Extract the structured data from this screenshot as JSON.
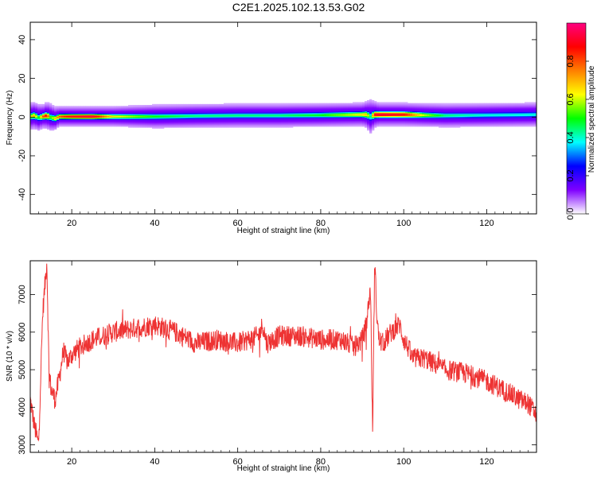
{
  "figure": {
    "title": "C2E1.2025.102.13.53.G02"
  },
  "chart_data": [
    {
      "type": "heatmap",
      "xlabel": "Height of straight line (km)",
      "ylabel": "Frequency (Hz)",
      "xlim": [
        10,
        132
      ],
      "ylim": [
        -50,
        49
      ],
      "xticks": [
        20,
        40,
        60,
        80,
        100,
        120
      ],
      "yticks": [
        -40,
        -20,
        0,
        20,
        40
      ],
      "colorbar": {
        "label": "Normalized spectral amplitude",
        "range": [
          0,
          1
        ],
        "ticks": [
          0.0,
          0.2,
          0.4,
          0.6,
          0.8
        ],
        "colormap": [
          "#ffffff",
          "#7f00ff",
          "#0000ff",
          "#00ffff",
          "#00ff00",
          "#ffff00",
          "#ff7f00",
          "#ff0000",
          "#ff0080"
        ]
      },
      "ridge": {
        "x": [
          10,
          11,
          12,
          13,
          14,
          15,
          16,
          17,
          18,
          20,
          25,
          30,
          40,
          50,
          60,
          70,
          80,
          90,
          91,
          92,
          93,
          94,
          95,
          100,
          105,
          110,
          120,
          132
        ],
        "frequency": [
          0.5,
          1.0,
          0.0,
          0.5,
          1.0,
          0.0,
          -0.5,
          0.5,
          0.5,
          0.5,
          0.5,
          0.5,
          0.5,
          0.8,
          1.0,
          1.0,
          1.2,
          1.5,
          1.5,
          0.5,
          1.5,
          1.5,
          1.5,
          1.5,
          1.2,
          1.0,
          1.2,
          1.5
        ],
        "amplitude": [
          0.6,
          0.7,
          0.5,
          0.8,
          0.9,
          0.5,
          0.7,
          0.8,
          0.85,
          0.9,
          0.95,
          0.65,
          0.5,
          0.45,
          0.45,
          0.45,
          0.5,
          0.65,
          0.7,
          0.45,
          0.9,
          0.95,
          0.95,
          0.9,
          0.6,
          0.45,
          0.4,
          0.4
        ],
        "width_hz": [
          4,
          4,
          4,
          3.5,
          4,
          4,
          3.5,
          3,
          3,
          3,
          3,
          3,
          3.5,
          3.5,
          3.5,
          3.5,
          3.5,
          3.5,
          4,
          5,
          4,
          3.5,
          3.5,
          3.5,
          3.5,
          3.5,
          3.5,
          3.5
        ]
      }
    },
    {
      "type": "line",
      "xlabel": "Height of straight line (km)",
      "ylabel": "SNR (10 * v/v)",
      "xlim": [
        10,
        132
      ],
      "ylim": [
        2800,
        7900
      ],
      "xticks": [
        20,
        40,
        60,
        80,
        100,
        120
      ],
      "yticks": [
        3000,
        4000,
        5000,
        6000,
        7000
      ],
      "color": "#ee3333",
      "envelope": {
        "x": [
          10,
          11,
          12,
          13,
          14,
          14.5,
          15,
          16,
          17,
          18,
          19,
          20,
          22,
          25,
          30,
          35,
          40,
          45,
          50,
          55,
          60,
          65,
          66,
          67,
          70,
          75,
          80,
          85,
          88,
          90,
          91,
          92,
          92.5,
          93,
          93.5,
          94,
          95,
          97,
          99,
          100,
          101,
          102,
          105,
          110,
          115,
          120,
          125,
          128,
          130,
          132
        ],
        "y": [
          4200,
          3500,
          3000,
          6500,
          7900,
          5000,
          4500,
          4200,
          4800,
          5500,
          5200,
          5400,
          5600,
          5800,
          6000,
          6100,
          6200,
          6000,
          5700,
          5800,
          5700,
          5900,
          6200,
          5700,
          5900,
          5900,
          5800,
          5800,
          5600,
          5800,
          6200,
          7200,
          3300,
          7900,
          6500,
          5800,
          5700,
          6000,
          6200,
          5800,
          5600,
          5300,
          5300,
          5000,
          4900,
          4700,
          4400,
          4200,
          4100,
          3800
        ],
        "noise_amplitude": 280
      }
    }
  ]
}
